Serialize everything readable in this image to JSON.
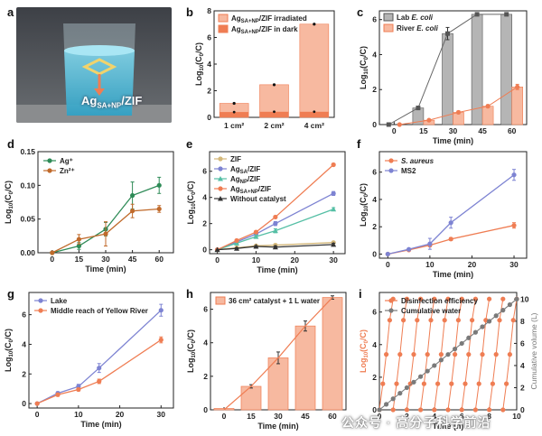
{
  "panels": {
    "a": {
      "letter": "a",
      "photo_label": "Ag",
      "photo_label_sub": "SA+NP",
      "photo_label_tail": "/ZIF"
    },
    "b": {
      "letter": "b"
    },
    "c": {
      "letter": "c"
    },
    "d": {
      "letter": "d"
    },
    "e": {
      "letter": "e"
    },
    "f": {
      "letter": "f"
    },
    "g": {
      "letter": "g"
    },
    "h": {
      "letter": "h"
    },
    "i": {
      "letter": "i"
    }
  },
  "watermark": "公众号 · 高分子科学前沿",
  "colors": {
    "salmon": "#f7b9a0",
    "orange": "#ef7d53",
    "gray": "#b5b5b5",
    "green": "#2e8b57",
    "brown": "#c06a2b",
    "violet": "#7d83d2",
    "olive": "#d4b87a",
    "teal": "#55bfa5",
    "black": "#333333",
    "cum_gray": "#7a7a7a"
  },
  "chart_data": [
    {
      "panel": "b",
      "type": "bar",
      "categories": [
        "1 cm²",
        "2 cm²",
        "4 cm²"
      ],
      "series": [
        {
          "name": "Ag|SA+NP|/ZIF irradiated",
          "values": [
            1.05,
            2.45,
            7.0
          ],
          "errors": [
            0.06,
            0.07,
            0.08
          ]
        },
        {
          "name": "Ag|SA+NP|/ZIF in dark",
          "values": [
            0.4,
            0.42,
            0.42
          ],
          "errors": [
            0.03,
            0.03,
            0.03
          ]
        }
      ],
      "ylabel": "Log10(C0/C)",
      "ylim": [
        0,
        8
      ],
      "yticks": [
        0,
        2,
        4,
        6,
        8
      ],
      "legend": "top-left"
    },
    {
      "panel": "c",
      "type": "bar",
      "x": [
        0,
        15,
        30,
        45,
        60
      ],
      "series": [
        {
          "name": "Lab |E. coli|",
          "values": [
            0,
            0.95,
            5.2,
            6.3,
            6.3
          ],
          "errors": [
            0,
            0.1,
            0.35,
            0,
            0
          ]
        },
        {
          "name": "River |E. coli|",
          "values": [
            0,
            0.25,
            0.7,
            1.05,
            2.15
          ],
          "errors": [
            0,
            0.05,
            0.08,
            0.08,
            0.15
          ]
        }
      ],
      "xlabel": "Time (min)",
      "ylabel": "Log10(C0/C)",
      "ylim": [
        0,
        6.5
      ],
      "yticks": [
        0,
        2,
        4,
        6
      ],
      "legend": "top-left"
    },
    {
      "panel": "d",
      "type": "line",
      "x": [
        0,
        15,
        30,
        45,
        60
      ],
      "series": [
        {
          "name": "Ag⁺",
          "values": [
            0,
            0.01,
            0.035,
            0.085,
            0.1
          ],
          "errors": [
            0,
            0.005,
            0.01,
            0.02,
            0.012
          ]
        },
        {
          "name": "Zn²⁺",
          "values": [
            0,
            0.02,
            0.028,
            0.062,
            0.065
          ],
          "errors": [
            0,
            0.007,
            0.018,
            0.01,
            0.005
          ]
        }
      ],
      "xlabel": "Time (min)",
      "ylabel": "Log10(C0/C)",
      "ylim": [
        0,
        0.15
      ],
      "yticks": [
        0,
        0.05,
        0.1,
        0.15
      ],
      "xlim": [
        -8,
        68
      ],
      "legend": "top-left"
    },
    {
      "panel": "e",
      "type": "line",
      "x": [
        0,
        5,
        10,
        15,
        30
      ],
      "series": [
        {
          "name": "ZIF",
          "values": [
            0,
            0.15,
            0.3,
            0.35,
            0.55
          ],
          "errors": [
            0,
            0.05,
            0.08,
            0.1,
            0.08
          ]
        },
        {
          "name": "Ag|SA|/ZIF",
          "values": [
            0,
            0.6,
            1.2,
            2.0,
            4.3
          ],
          "errors": [
            0,
            0.1,
            0.15,
            0.15,
            0.15
          ]
        },
        {
          "name": "Ag|NP|/ZIF",
          "values": [
            0,
            0.5,
            1.0,
            1.45,
            3.1
          ],
          "errors": [
            0,
            0.1,
            0.12,
            0.15,
            0.12
          ]
        },
        {
          "name": "Ag|SA+NP|/ZIF",
          "values": [
            0,
            0.7,
            1.35,
            2.5,
            6.5
          ],
          "errors": [
            0,
            0.08,
            0.1,
            0.1,
            0.1
          ]
        },
        {
          "name": "Without catalyst",
          "values": [
            0,
            0.1,
            0.25,
            0.2,
            0.4
          ],
          "errors": [
            0,
            0.05,
            0.05,
            0.1,
            0.1
          ]
        }
      ],
      "xlabel": "Time (min)",
      "ylabel": "Log10(C0/C)",
      "ylim": [
        -0.3,
        7.5
      ],
      "yticks": [
        0,
        2,
        4,
        6
      ],
      "xlim": [
        -2,
        33
      ],
      "xticks": [
        0,
        10,
        20,
        30
      ],
      "legend": "top-left"
    },
    {
      "panel": "f",
      "type": "line",
      "x": [
        0,
        5,
        10,
        15,
        30
      ],
      "series": [
        {
          "name": "|S. aureus|",
          "values": [
            0,
            0.3,
            0.65,
            1.1,
            2.1
          ],
          "errors": [
            0,
            0.05,
            0.1,
            0.1,
            0.2
          ]
        },
        {
          "name": "MS2",
          "values": [
            0,
            0.35,
            0.75,
            2.3,
            5.8
          ],
          "errors": [
            0,
            0.05,
            0.4,
            0.4,
            0.4
          ]
        }
      ],
      "xlabel": "Time (min)",
      "ylabel": "Log10(C0/C)",
      "ylim": [
        -0.3,
        7.5
      ],
      "yticks": [
        0,
        2,
        4,
        6
      ],
      "xlim": [
        -2,
        33
      ],
      "xticks": [
        0,
        10,
        20,
        30
      ],
      "legend": "top-left"
    },
    {
      "panel": "g",
      "type": "line",
      "x": [
        0,
        5,
        10,
        15,
        30
      ],
      "series": [
        {
          "name": "Lake",
          "values": [
            0,
            0.7,
            1.15,
            2.4,
            6.3
          ],
          "errors": [
            0,
            0.1,
            0.15,
            0.3,
            0.4
          ]
        },
        {
          "name": "Middle reach of Yellow River",
          "values": [
            0,
            0.6,
            0.95,
            1.5,
            4.3
          ],
          "errors": [
            0,
            0.1,
            0.1,
            0.15,
            0.2
          ]
        }
      ],
      "xlabel": "Time (min)",
      "ylabel": "Log10(C0/C)",
      "ylim": [
        -0.3,
        7.5
      ],
      "yticks": [
        0,
        2,
        4,
        6
      ],
      "xlim": [
        -2,
        33
      ],
      "xticks": [
        0,
        10,
        20,
        30
      ],
      "legend": "top-left"
    },
    {
      "panel": "h",
      "type": "bar",
      "x": [
        0,
        15,
        30,
        45,
        60
      ],
      "series": [
        {
          "name": "36 cm² catalyst + 1 L water",
          "values": [
            0,
            1.4,
            3.1,
            5.0,
            6.7
          ],
          "errors": [
            0,
            0.1,
            0.35,
            0.3,
            0.1
          ]
        }
      ],
      "trend": "line",
      "xlabel": "Time (min)",
      "ylabel": "Log10(C0/C)",
      "ylim": [
        0,
        7
      ],
      "yticks": [
        0,
        2,
        4,
        6
      ],
      "legend": "top-left"
    },
    {
      "panel": "i",
      "type": "line",
      "x_range": [
        0,
        10
      ],
      "cycles": 10,
      "series": [
        {
          "name": "Disinfection efficiency",
          "axis": "left",
          "cycle_profile": [
            0,
            1.6,
            3.4,
            5.5,
            6.8
          ]
        },
        {
          "name": "Cumulative water",
          "axis": "right",
          "x": [
            0,
            10
          ],
          "values": [
            0,
            10
          ]
        }
      ],
      "xlabel": "Time (h)",
      "ylabel": "Log10(C0/C)",
      "y2label": "Cumulative volume (L)",
      "ylim": [
        0,
        7.2
      ],
      "yticks": [
        0,
        2,
        4,
        6
      ],
      "y2lim": [
        0,
        10.6
      ],
      "y2ticks": [
        0,
        2,
        4,
        6,
        8,
        10
      ],
      "xticks": [
        0,
        2,
        4,
        6,
        8,
        10
      ],
      "legend": "top-left"
    }
  ]
}
